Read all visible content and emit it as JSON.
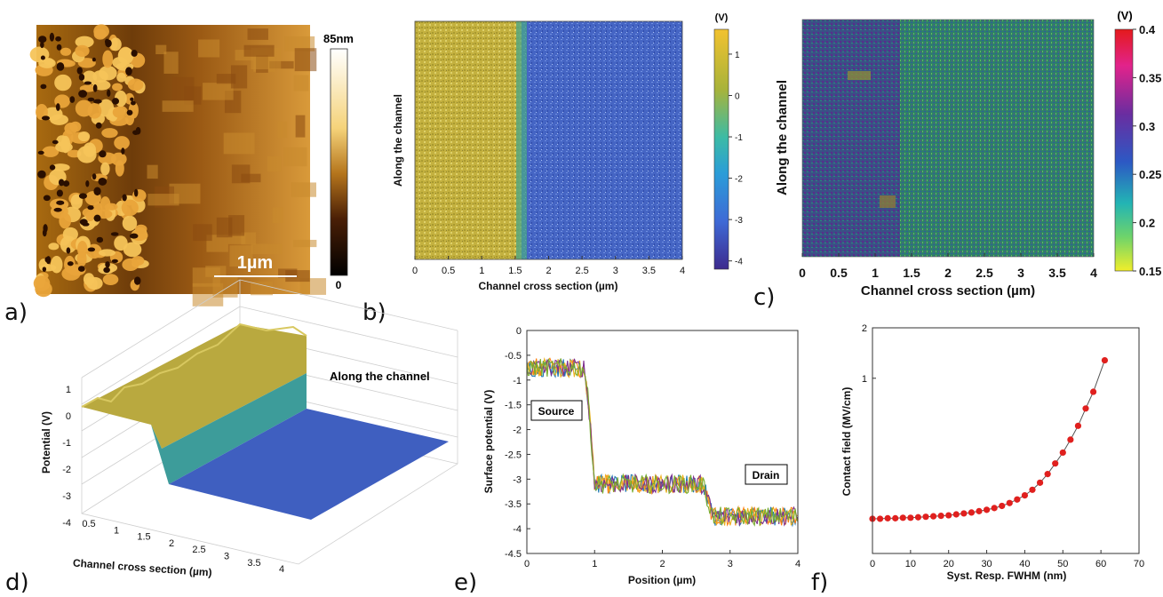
{
  "panel_letters": {
    "a": "a)",
    "b": "b)",
    "c": "c)",
    "d": "d)",
    "e": "e)",
    "f": "f)"
  },
  "colors": {
    "yellow_region": "#c3b23c",
    "blue_region": "#3f5fc0",
    "afm_dark": "#2a0f00",
    "afm_bright": "#f2b24a",
    "marker_red": "#e0201e"
  },
  "chart_data": [
    {
      "panel": "a",
      "type": "heatmap",
      "colorbar": {
        "max_label": "85nm",
        "min_label": "0",
        "range": [
          0,
          85
        ]
      },
      "scalebar_label": "1µm"
    },
    {
      "panel": "b",
      "type": "heatmap",
      "xlabel": "Channel cross section (µm)",
      "ylabel": "Along the channel",
      "xlim": [
        0,
        4
      ],
      "x_ticks": [
        "0",
        "0.5",
        "1",
        "1.5",
        "2",
        "2.5",
        "3",
        "3.5",
        "4"
      ],
      "colorbar": {
        "unit": "(V)",
        "ticks": [
          "1",
          "0",
          "-1",
          "-2",
          "-3",
          "-4"
        ],
        "range": [
          -4.2,
          1.6
        ]
      },
      "regions": [
        {
          "x_from": 0,
          "x_to": 1.55,
          "value": 0.8
        },
        {
          "x_from": 1.55,
          "x_to": 4,
          "value": -2.5
        }
      ]
    },
    {
      "panel": "c",
      "type": "heatmap",
      "xlabel": "Channel cross section (µm)",
      "ylabel": "Along the channel",
      "xlim": [
        0,
        4
      ],
      "x_ticks": [
        "0",
        "0.5",
        "1",
        "1.5",
        "2",
        "2.5",
        "3",
        "3.5",
        "4"
      ],
      "colorbar": {
        "unit": "(V)",
        "ticks": [
          "0.4",
          "0.35",
          "0.3",
          "0.25",
          "0.2",
          "0.15"
        ],
        "range": [
          0.15,
          0.4
        ]
      }
    },
    {
      "panel": "d",
      "type": "area",
      "xlabel": "Channel cross section (µm)",
      "ylabel": "Potential (V)",
      "annotation": "Along the channel",
      "x_ticks": [
        "0.5",
        "1",
        "1.5",
        "2",
        "2.5",
        "3",
        "3.5",
        "4"
      ],
      "z_ticks": [
        "1",
        "0",
        "-1",
        "-2",
        "-3",
        "-4"
      ]
    },
    {
      "panel": "e",
      "type": "line",
      "xlabel": "Position (µm)",
      "ylabel": "Surface potential (V)",
      "xlim": [
        0,
        4
      ],
      "ylim": [
        -4.5,
        0
      ],
      "x_ticks": [
        "0",
        "1",
        "2",
        "3",
        "4"
      ],
      "y_ticks": [
        "0",
        "-0.5",
        "-1",
        "-1.5",
        "-2",
        "-2.5",
        "-3",
        "-3.5",
        "-4",
        "-4.5"
      ],
      "annotations": [
        "Source",
        "Drain"
      ],
      "profile": {
        "x": [
          0,
          0.85,
          0.92,
          1.0,
          2.6,
          2.65,
          2.75,
          4.0
        ],
        "y": [
          -0.75,
          -0.75,
          -1.6,
          -3.1,
          -3.1,
          -3.35,
          -3.75,
          -3.75
        ]
      },
      "series_colors": [
        "#1f77b4",
        "#ff7f0e",
        "#edb120",
        "#7e2f8e",
        "#77ac30"
      ]
    },
    {
      "panel": "f",
      "type": "scatter",
      "xlabel": "Syst. Resp. FWHM (nm)",
      "ylabel": "Contact field (MV/cm)",
      "xlim": [
        0,
        70
      ],
      "x_ticks": [
        "0",
        "10",
        "20",
        "30",
        "40",
        "50",
        "60",
        "70"
      ],
      "y_tick_labels": [
        "2",
        "1"
      ],
      "y_scale": "log",
      "ylim": [
        0.09,
        2
      ],
      "x": [
        0,
        2,
        4,
        6,
        8,
        10,
        12,
        14,
        16,
        18,
        20,
        22,
        24,
        26,
        28,
        30,
        32,
        34,
        36,
        38,
        40,
        42,
        44,
        46,
        48,
        50,
        52,
        54,
        56,
        58,
        61
      ],
      "y": [
        0.145,
        0.145,
        0.146,
        0.146,
        0.147,
        0.147,
        0.148,
        0.149,
        0.15,
        0.151,
        0.152,
        0.154,
        0.156,
        0.158,
        0.161,
        0.164,
        0.168,
        0.173,
        0.18,
        0.189,
        0.2,
        0.216,
        0.238,
        0.268,
        0.31,
        0.36,
        0.43,
        0.52,
        0.66,
        0.83,
        1.28
      ]
    }
  ]
}
